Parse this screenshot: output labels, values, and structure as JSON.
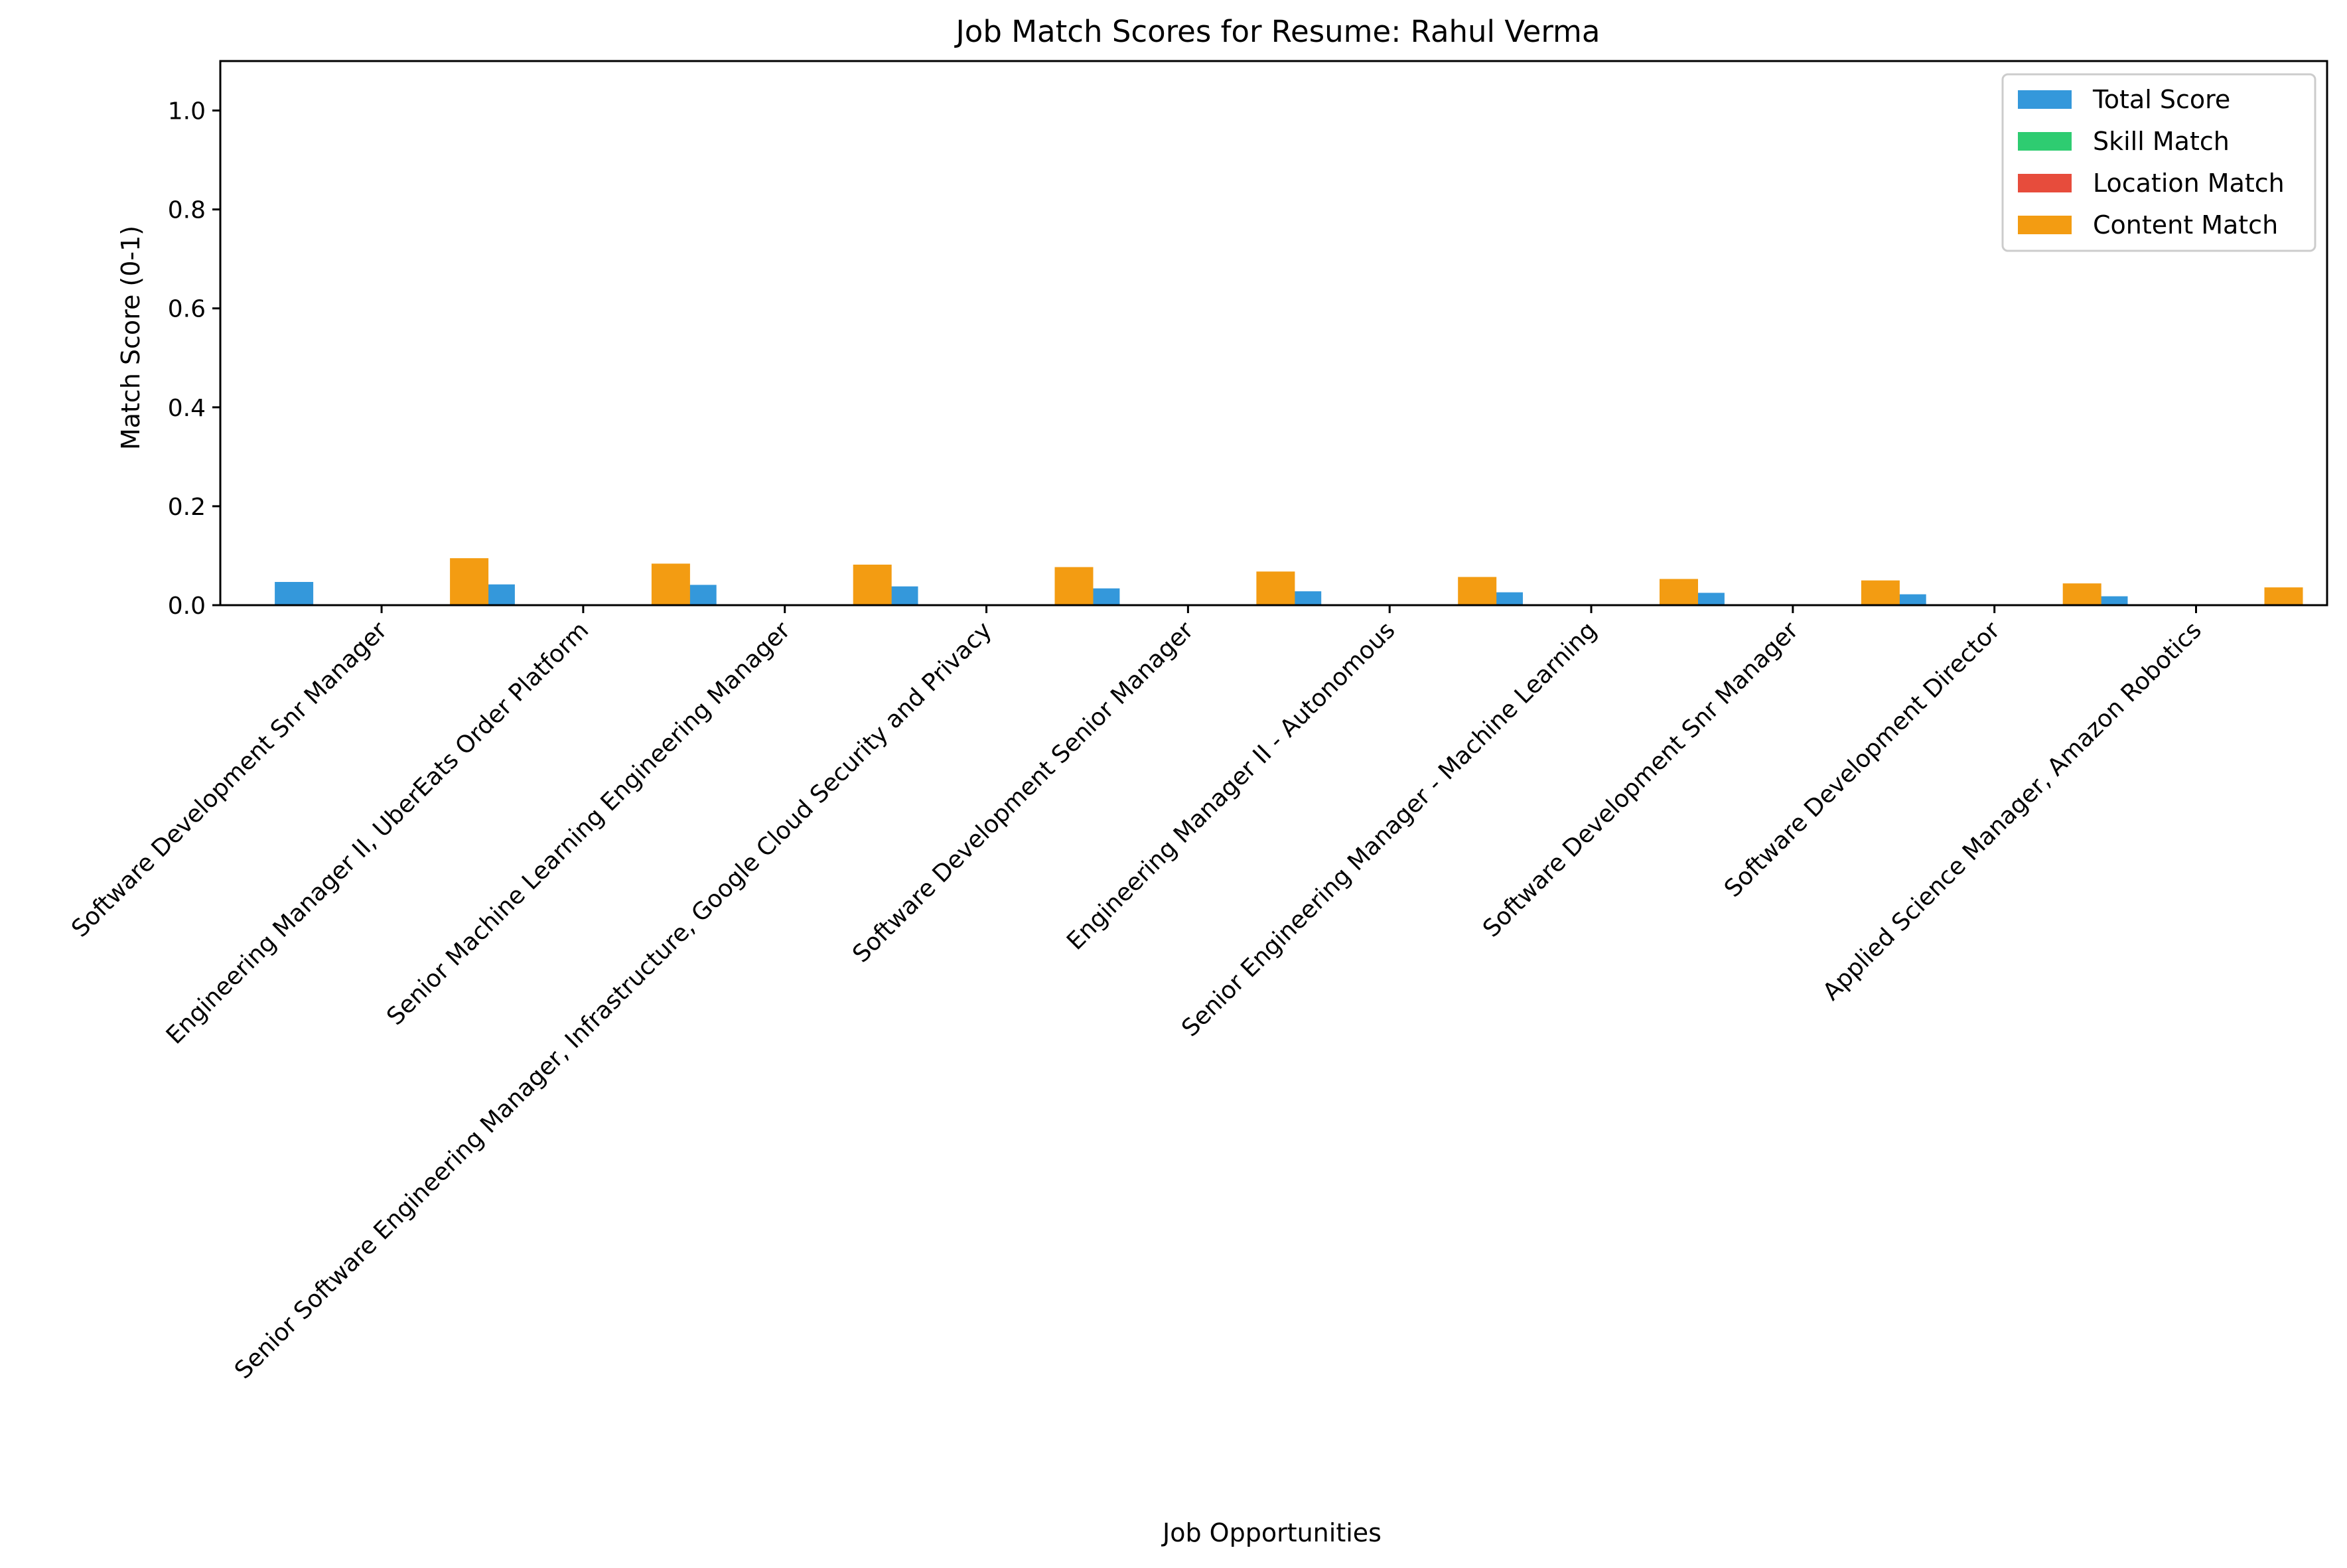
{
  "chart_data": {
    "type": "bar",
    "title": "Job Match Scores for Resume: Rahul Verma",
    "xlabel": "Job Opportunities",
    "ylabel": "Match Score (0-1)",
    "ylim": [
      0,
      1.1
    ],
    "yticks": [
      "0.0",
      "0.2",
      "0.4",
      "0.6",
      "0.8",
      "1.0"
    ],
    "ytick_values": [
      0,
      0.2,
      0.4,
      0.6,
      0.8,
      1.0
    ],
    "grid": false,
    "legend_position": "top-right",
    "categories": [
      "Software Development Snr Manager",
      "Engineering Manager II, UberEats Order Platform",
      "Senior Machine Learning Engineering Manager",
      "Senior Software Engineering Manager, Infrastructure, Google Cloud Security and Privacy",
      "Software Development Senior Manager",
      "Engineering Manager II - Autonomous",
      "Senior Engineering Manager - Machine Learning",
      "Software Development Snr Manager",
      "Software Development Director",
      "Applied Science Manager, Amazon Robotics"
    ],
    "series": [
      {
        "name": "Total Score",
        "color": "#3498db",
        "values": [
          0.047,
          0.042,
          0.041,
          0.038,
          0.034,
          0.028,
          0.026,
          0.025,
          0.022,
          0.018
        ]
      },
      {
        "name": "Skill Match",
        "color": "#2ecc71",
        "values": [
          0,
          0,
          0,
          0,
          0,
          0,
          0,
          0,
          0,
          0
        ]
      },
      {
        "name": "Location Match",
        "color": "#e74c3c",
        "values": [
          0,
          0,
          0,
          0,
          0,
          0,
          0,
          0,
          0,
          0
        ]
      },
      {
        "name": "Content Match",
        "color": "#f39c12",
        "values": [
          0.095,
          0.084,
          0.082,
          0.077,
          0.068,
          0.057,
          0.053,
          0.05,
          0.044,
          0.036
        ]
      }
    ]
  }
}
